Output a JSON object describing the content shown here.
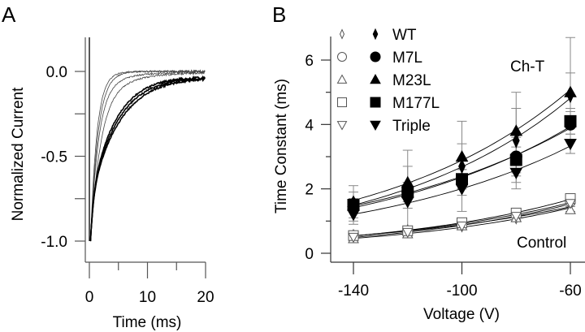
{
  "chart_data": [
    {
      "panel_label": "A",
      "type": "line",
      "xlabel": "Time (ms)",
      "ylabel": "Normalized Current",
      "xlim": [
        0,
        20
      ],
      "ylim": [
        -1.0,
        0.0
      ],
      "x_ticks": [
        "0",
        "10",
        "20"
      ],
      "y_ticks": [
        "0.0",
        "-0.5",
        "-1.0"
      ],
      "grid": false,
      "series": [
        {
          "name": "Control trace 1",
          "tau_ms": 1.1,
          "tail_tau_ms": 0,
          "tail_amp": 0
        },
        {
          "name": "Control trace 2",
          "tau_ms": 1.3,
          "tail_tau_ms": 0,
          "tail_amp": 0
        },
        {
          "name": "Control trace 3",
          "tau_ms": 1.4,
          "tail_tau_ms": 6,
          "tail_amp": 0.08
        },
        {
          "name": "Control trace 4",
          "tau_ms": 1.8,
          "tail_tau_ms": 7,
          "tail_amp": 0.12
        },
        {
          "name": "Ch-T trace 1",
          "tau_ms": 4.4,
          "tail_tau_ms": 0.5,
          "tail_amp": 0.35
        },
        {
          "name": "Ch-T trace 2",
          "tau_ms": 4.8,
          "tail_tau_ms": 0.5,
          "tail_amp": 0.3
        },
        {
          "name": "Ch-T trace 3",
          "tau_ms": 5.2,
          "tail_tau_ms": 0.5,
          "tail_amp": 0.25
        }
      ]
    },
    {
      "panel_label": "B",
      "type": "scatter",
      "xlabel": "Voltage (V)",
      "ylabel": "Time Constant (ms)",
      "xlim": [
        -147,
        -55
      ],
      "ylim": [
        -0.3,
        6.7
      ],
      "x": [
        -140,
        -120,
        -100,
        -80,
        -60
      ],
      "x_ticks": [
        "-140",
        "-100",
        "-60"
      ],
      "y_ticks": [
        "0",
        "2",
        "4",
        "6"
      ],
      "grid": false,
      "legend": {
        "placement": "top-left",
        "entries": [
          "WT",
          "M7L",
          "M23L",
          "M177L",
          "Triple"
        ]
      },
      "annotations": [
        "Ch-T",
        "Control"
      ],
      "series": [
        {
          "name": "WT Ch-T",
          "marker": "diamond",
          "filled": true,
          "values": [
            1.5,
            2.0,
            2.7,
            3.5,
            4.9
          ],
          "errors": [
            0.6,
            1.2,
            1.4,
            1.5,
            1.8
          ]
        },
        {
          "name": "M7L Ch-T",
          "marker": "circle",
          "filled": true,
          "values": [
            1.4,
            1.9,
            2.3,
            3.0,
            4.0
          ],
          "errors": [
            0.3,
            0.3,
            0.3,
            0.6,
            0.5
          ]
        },
        {
          "name": "M23L Ch-T",
          "marker": "triangle-up",
          "filled": true,
          "values": [
            1.6,
            2.2,
            3.0,
            3.8,
            5.0
          ],
          "errors": [
            0.3,
            0.5,
            0.4,
            0.7,
            0.6
          ]
        },
        {
          "name": "M177L Ch-T",
          "marker": "square",
          "filled": true,
          "values": [
            1.5,
            1.9,
            2.3,
            2.9,
            4.1
          ],
          "errors": [
            0.2,
            0.3,
            0.3,
            0.4,
            0.4
          ]
        },
        {
          "name": "Triple Ch-T",
          "marker": "triangle-down",
          "filled": true,
          "values": [
            1.2,
            1.6,
            2.0,
            2.5,
            3.4
          ],
          "errors": [
            0.2,
            0.2,
            0.2,
            0.3,
            0.3
          ]
        },
        {
          "name": "WT Control",
          "marker": "diamond",
          "filled": false,
          "values": [
            0.55,
            0.7,
            0.85,
            1.1,
            1.5
          ],
          "errors": [
            0.1,
            0.1,
            0.1,
            0.1,
            0.2
          ]
        },
        {
          "name": "M7L Control",
          "marker": "circle",
          "filled": false,
          "values": [
            0.55,
            0.7,
            0.9,
            1.2,
            1.6
          ],
          "errors": [
            0.1,
            0.1,
            0.1,
            0.1,
            0.1
          ]
        },
        {
          "name": "M23L Control",
          "marker": "triangle-up",
          "filled": false,
          "values": [
            0.45,
            0.6,
            0.85,
            1.1,
            1.35
          ],
          "errors": [
            0.1,
            0.1,
            0.1,
            0.1,
            0.1
          ]
        },
        {
          "name": "M177L Control",
          "marker": "square",
          "filled": false,
          "values": [
            0.55,
            0.7,
            0.95,
            1.25,
            1.7
          ],
          "errors": [
            0.1,
            0.1,
            0.1,
            0.1,
            0.1
          ]
        },
        {
          "name": "Triple Control",
          "marker": "triangle-down",
          "filled": false,
          "values": [
            0.5,
            0.65,
            0.85,
            1.15,
            1.55
          ],
          "errors": [
            0.1,
            0.1,
            0.1,
            0.1,
            0.1
          ]
        }
      ]
    }
  ]
}
